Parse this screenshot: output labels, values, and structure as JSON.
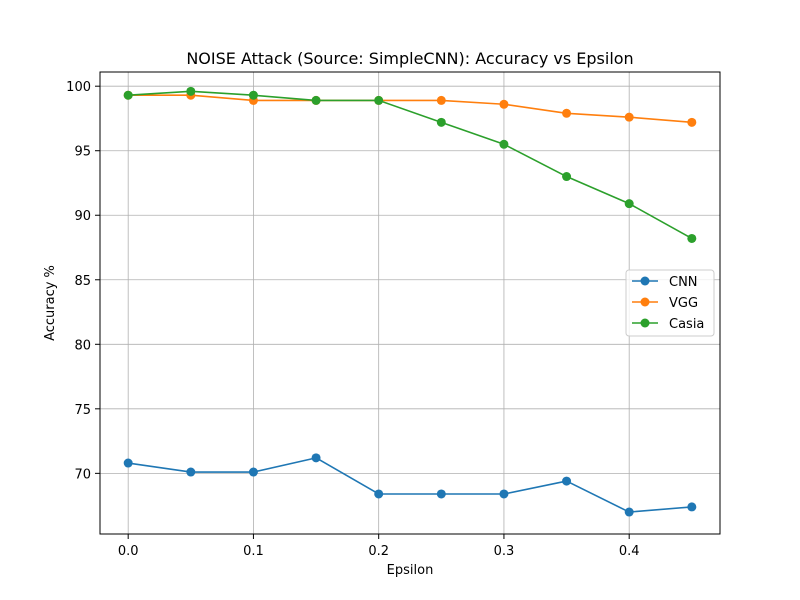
{
  "chart_data": {
    "type": "line",
    "title": "NOISE Attack (Source: SimpleCNN): Accuracy vs Epsilon",
    "xlabel": "Epsilon",
    "ylabel": "Accuracy %",
    "xlim": [
      -0.0225,
      0.4725
    ],
    "ylim": [
      65.3,
      101.1
    ],
    "xticks": [
      0.0,
      0.1,
      0.2,
      0.3,
      0.4
    ],
    "xtick_labels": [
      "0.0",
      "0.1",
      "0.2",
      "0.3",
      "0.4"
    ],
    "yticks": [
      70,
      75,
      80,
      85,
      90,
      95,
      100
    ],
    "ytick_labels": [
      "70",
      "75",
      "80",
      "85",
      "90",
      "95",
      "100"
    ],
    "grid": true,
    "legend_position": "center-right",
    "x": [
      0.0,
      0.05,
      0.1,
      0.15,
      0.2,
      0.25,
      0.3,
      0.35,
      0.4,
      0.45
    ],
    "series": [
      {
        "name": "CNN",
        "color": "#1f77b4",
        "values": [
          70.8,
          70.1,
          70.1,
          71.2,
          68.4,
          68.4,
          68.4,
          69.4,
          67.0,
          67.4
        ]
      },
      {
        "name": "VGG",
        "color": "#ff7f0e",
        "values": [
          99.3,
          99.3,
          98.9,
          98.9,
          98.9,
          98.9,
          98.6,
          97.9,
          97.6,
          97.2
        ]
      },
      {
        "name": "Casia",
        "color": "#2ca02c",
        "values": [
          99.3,
          99.6,
          99.3,
          98.9,
          98.9,
          97.2,
          95.5,
          93.0,
          90.9,
          88.2
        ]
      }
    ]
  }
}
